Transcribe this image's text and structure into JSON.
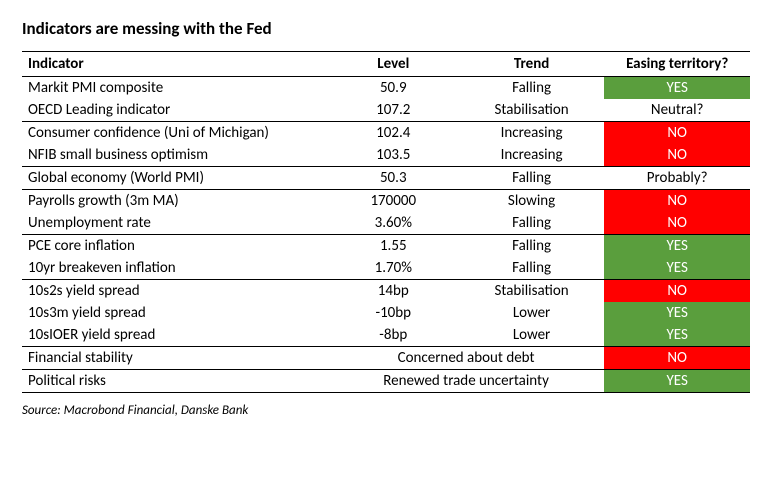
{
  "title": "Indicators are messing with the Fed",
  "columns": {
    "indicator": "Indicator",
    "level": "Level",
    "trend": "Trend",
    "easing": "Easing territory?"
  },
  "colors": {
    "yes_bg": "#5a9e3d",
    "no_bg": "#ff0000",
    "neutral_bg": "#ffffff",
    "yes_text": "#ffffff",
    "no_text": "#ffffff",
    "neutral_text": "#000000"
  },
  "rows": [
    {
      "name": "Markit PMI composite",
      "level": "50.9",
      "trend": "Falling",
      "easing": "YES",
      "kind": "yes",
      "sep": false
    },
    {
      "name": "OECD Leading indicator",
      "level": "107.2",
      "trend": "Stabilisation",
      "easing": "Neutral?",
      "kind": "neutral",
      "sep": true
    },
    {
      "name": "Consumer confidence (Uni of Michigan)",
      "level": "102.4",
      "trend": "Increasing",
      "easing": "NO",
      "kind": "no",
      "sep": false
    },
    {
      "name": "NFIB small business optimism",
      "level": "103.5",
      "trend": "Increasing",
      "easing": "NO",
      "kind": "no",
      "sep": true
    },
    {
      "name": "Global economy (World PMI)",
      "level": "50.3",
      "trend": "Falling",
      "easing": "Probably?",
      "kind": "neutral",
      "sep": true
    },
    {
      "name": "Payrolls growth (3m MA)",
      "level": "170000",
      "trend": "Slowing",
      "easing": "NO",
      "kind": "no",
      "sep": false
    },
    {
      "name": "Unemployment rate",
      "level": "3.60%",
      "trend": "Falling",
      "easing": "NO",
      "kind": "no",
      "sep": true
    },
    {
      "name": "PCE core inflation",
      "level": "1.55",
      "trend": "Falling",
      "easing": "YES",
      "kind": "yes",
      "sep": false
    },
    {
      "name": "10yr breakeven inflation",
      "level": "1.70%",
      "trend": "Falling",
      "easing": "YES",
      "kind": "yes",
      "sep": true
    },
    {
      "name": "10s2s yield spread",
      "level": "14bp",
      "trend": "Stabilisation",
      "easing": "NO",
      "kind": "no",
      "sep": false
    },
    {
      "name": "10s3m yield spread",
      "level": "-10bp",
      "trend": "Lower",
      "easing": "YES",
      "kind": "yes",
      "sep": false
    },
    {
      "name": "10sIOER yield spread",
      "level": "-8bp",
      "trend": "Lower",
      "easing": "YES",
      "kind": "yes",
      "sep": true
    },
    {
      "name": "Financial stability",
      "merged": "Concerned about debt",
      "easing": "NO",
      "kind": "no",
      "sep": true
    },
    {
      "name": "Political risks",
      "merged": "Renewed trade uncertainty",
      "easing": "YES",
      "kind": "yes",
      "sep": true,
      "last": true
    }
  ],
  "source": "Source: Macrobond Financial, Danske Bank"
}
